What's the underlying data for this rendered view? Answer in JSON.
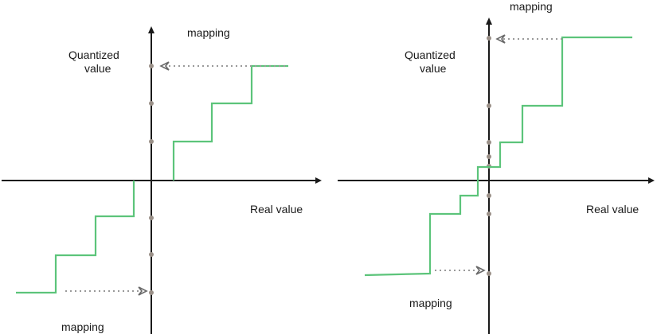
{
  "left_panel": {
    "y_axis_label_line1": "Quantized",
    "y_axis_label_line2": "value",
    "x_axis_label": "Real value",
    "mapping_top_label": "mapping",
    "mapping_bottom_label": "mapping"
  },
  "right_panel": {
    "y_axis_label_line1": "Quantized",
    "y_axis_label_line2": "value",
    "x_axis_label": "Real value",
    "mapping_top_label": "mapping",
    "mapping_bottom_label": "mapping"
  },
  "colors": {
    "step_function": "#5cc47a",
    "axis": "#1a1a1a",
    "quantization_point": "#9a9088",
    "mapping_arrow": "#9a9a9a"
  }
}
